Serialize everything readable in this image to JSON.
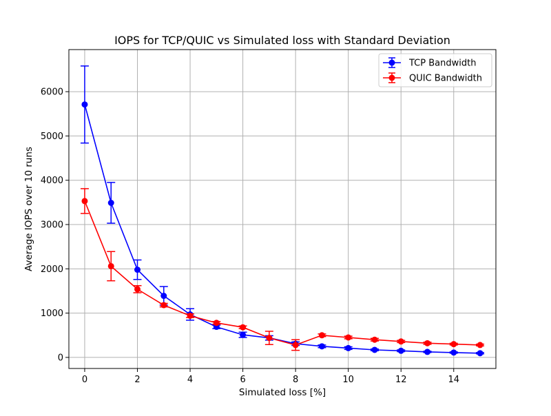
{
  "chart_data": {
    "type": "line",
    "title": "IOPS for TCP/QUIC vs Simulated loss with Standard Deviation",
    "xlabel": "Simulated loss [%]",
    "ylabel": "Average IOPS over 10 runs",
    "xlim": [
      -0.6,
      15.6
    ],
    "ylim": [
      -250,
      6950
    ],
    "xticks": [
      0,
      2,
      4,
      6,
      8,
      10,
      12,
      14
    ],
    "yticks": [
      0,
      1000,
      2000,
      3000,
      4000,
      5000,
      6000
    ],
    "grid": true,
    "legend_position": "top-right",
    "x": [
      0,
      1,
      2,
      3,
      4,
      5,
      6,
      7,
      8,
      9,
      10,
      11,
      12,
      13,
      14,
      15
    ],
    "series": [
      {
        "name": "TCP Bandwidth",
        "color": "#0000ff",
        "marker": "circle",
        "values": [
          5710,
          3490,
          1980,
          1390,
          970,
          690,
          510,
          440,
          310,
          250,
          210,
          170,
          150,
          125,
          110,
          95
        ],
        "errors": [
          870,
          460,
          220,
          210,
          130,
          40,
          60,
          50,
          40,
          30,
          30,
          20,
          20,
          15,
          15,
          15
        ]
      },
      {
        "name": "QUIC Bandwidth",
        "color": "#ff0000",
        "marker": "circle",
        "values": [
          3530,
          2060,
          1540,
          1180,
          940,
          780,
          680,
          440,
          280,
          500,
          450,
          400,
          360,
          320,
          300,
          280
        ],
        "errors": [
          280,
          330,
          80,
          40,
          40,
          30,
          30,
          150,
          120,
          30,
          30,
          30,
          25,
          25,
          20,
          20
        ]
      }
    ]
  }
}
